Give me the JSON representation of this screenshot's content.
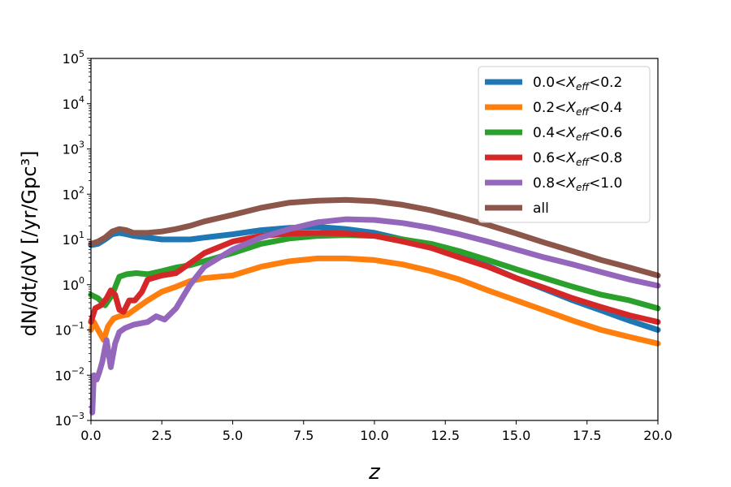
{
  "chart_data": {
    "type": "line",
    "xlabel": "z",
    "ylabel": "dN/dt/dV [/yr/Gpc³]",
    "xlim": [
      0,
      20
    ],
    "ylim": [
      0.001,
      100000
    ],
    "yscale": "log",
    "grid": false,
    "legend_position": "top-right",
    "x_ticks": [
      "0.0",
      "2.5",
      "5.0",
      "7.5",
      "10.0",
      "12.5",
      "15.0",
      "17.5",
      "20.0"
    ],
    "y_ticks": [
      {
        "base": "10",
        "exp": "−3"
      },
      {
        "base": "10",
        "exp": "−2"
      },
      {
        "base": "10",
        "exp": "−1"
      },
      {
        "base": "10",
        "exp": "0"
      },
      {
        "base": "10",
        "exp": "1"
      },
      {
        "base": "10",
        "exp": "2"
      },
      {
        "base": "10",
        "exp": "3"
      },
      {
        "base": "10",
        "exp": "4"
      },
      {
        "base": "10",
        "exp": "5"
      }
    ],
    "series": [
      {
        "name": "0.0<X_eff<0.2",
        "label_pre": "0.0<",
        "label_var": "X",
        "label_sub": "eff",
        "label_post": "<0.2",
        "color": "#1f77b4",
        "x": [
          0,
          0.25,
          0.5,
          0.75,
          1.0,
          1.25,
          1.5,
          2.0,
          2.5,
          3.0,
          3.5,
          4.0,
          5.0,
          6.0,
          7.0,
          8.0,
          9.0,
          10.0,
          11.0,
          12.0,
          13.0,
          14.0,
          15.0,
          16.0,
          17.0,
          18.0,
          19.0,
          20.0
        ],
        "y": [
          7.5,
          8,
          10,
          13,
          14,
          13,
          12,
          11,
          10,
          10,
          10,
          11,
          13,
          16,
          18,
          19,
          17,
          14,
          10,
          7,
          4.5,
          2.6,
          1.4,
          0.8,
          0.45,
          0.27,
          0.16,
          0.1
        ]
      },
      {
        "name": "0.2<X_eff<0.4",
        "label_pre": "0.2<",
        "label_var": "X",
        "label_sub": "eff",
        "label_post": "<0.4",
        "color": "#ff7f0e",
        "x": [
          0,
          0.1,
          0.25,
          0.45,
          0.6,
          0.8,
          1.0,
          1.3,
          1.6,
          2.0,
          2.5,
          3.0,
          3.5,
          4.0,
          5.0,
          6.0,
          7.0,
          8.0,
          9.0,
          10.0,
          11.0,
          12.0,
          13.0,
          14.0,
          15.0,
          16.0,
          17.0,
          18.0,
          19.0,
          20.0
        ],
        "y": [
          0.1,
          0.15,
          0.1,
          0.06,
          0.12,
          0.18,
          0.2,
          0.22,
          0.3,
          0.45,
          0.7,
          0.9,
          1.2,
          1.4,
          1.6,
          2.5,
          3.3,
          3.8,
          3.8,
          3.5,
          2.8,
          2.0,
          1.3,
          0.75,
          0.45,
          0.27,
          0.16,
          0.1,
          0.07,
          0.05
        ]
      },
      {
        "name": "0.4<X_eff<0.6",
        "label_pre": "0.4<",
        "label_var": "X",
        "label_sub": "eff",
        "label_post": "<0.6",
        "color": "#2ca02c",
        "x": [
          0,
          0.25,
          0.5,
          0.75,
          1.0,
          1.25,
          1.6,
          2.0,
          2.5,
          3.0,
          3.5,
          4.0,
          5.0,
          6.0,
          7.0,
          8.0,
          9.0,
          10.0,
          11.0,
          12.0,
          13.0,
          14.0,
          15.0,
          16.0,
          17.0,
          18.0,
          19.0,
          20.0
        ],
        "y": [
          0.6,
          0.5,
          0.35,
          0.6,
          1.5,
          1.7,
          1.8,
          1.7,
          2.0,
          2.4,
          2.7,
          3.3,
          5.0,
          8.0,
          10.5,
          12,
          12.5,
          12,
          10,
          8,
          5.5,
          3.5,
          2.2,
          1.4,
          0.9,
          0.6,
          0.45,
          0.3
        ]
      },
      {
        "name": "0.6<X_eff<0.8",
        "label_pre": "0.6<",
        "label_var": "X",
        "label_sub": "eff",
        "label_post": "<0.8",
        "color": "#d62728",
        "x": [
          0,
          0.15,
          0.35,
          0.55,
          0.7,
          0.85,
          1.0,
          1.15,
          1.35,
          1.55,
          1.8,
          2.0,
          2.5,
          3.0,
          3.5,
          4.0,
          5.0,
          6.0,
          7.0,
          8.0,
          9.0,
          10.0,
          11.0,
          12.0,
          13.0,
          14.0,
          15.0,
          16.0,
          17.0,
          18.0,
          19.0,
          20.0
        ],
        "y": [
          0.15,
          0.3,
          0.35,
          0.5,
          0.75,
          0.6,
          0.28,
          0.25,
          0.45,
          0.45,
          0.7,
          1.3,
          1.6,
          1.8,
          3.0,
          5.0,
          9.0,
          12,
          13.5,
          14,
          13.5,
          12,
          9,
          6.5,
          4,
          2.5,
          1.4,
          0.85,
          0.5,
          0.32,
          0.21,
          0.15
        ]
      },
      {
        "name": "0.8<X_eff<1.0",
        "label_pre": "0.8<",
        "label_var": "X",
        "label_sub": "eff",
        "label_post": "<1.0",
        "color": "#9467bd",
        "x": [
          0.05,
          0.1,
          0.2,
          0.3,
          0.4,
          0.55,
          0.7,
          0.85,
          1.0,
          1.2,
          1.5,
          2.0,
          2.3,
          2.6,
          3.0,
          3.5,
          4.0,
          5.0,
          6.0,
          7.0,
          8.0,
          9.0,
          10.0,
          11.0,
          12.0,
          13.0,
          14.0,
          15.0,
          16.0,
          17.0,
          18.0,
          19.0,
          20.0
        ],
        "y": [
          0.0015,
          0.01,
          0.008,
          0.012,
          0.02,
          0.06,
          0.015,
          0.05,
          0.09,
          0.11,
          0.13,
          0.15,
          0.2,
          0.17,
          0.3,
          1.0,
          2.5,
          6.0,
          11,
          17,
          24,
          28,
          27,
          23,
          18,
          13,
          9,
          6,
          4,
          2.8,
          1.9,
          1.3,
          0.95
        ]
      },
      {
        "name": "all",
        "label_pre": "all",
        "label_var": "",
        "label_sub": "",
        "label_post": "",
        "color": "#8c564b",
        "x": [
          0,
          0.25,
          0.5,
          0.75,
          1.0,
          1.25,
          1.5,
          2.0,
          2.5,
          3.0,
          3.5,
          4.0,
          5.0,
          6.0,
          7.0,
          8.0,
          9.0,
          10.0,
          11.0,
          12.0,
          13.0,
          14.0,
          15.0,
          16.0,
          17.0,
          18.0,
          19.0,
          20.0
        ],
        "y": [
          8,
          9,
          11,
          15,
          17,
          16,
          14,
          14,
          15,
          17,
          20,
          25,
          35,
          50,
          65,
          72,
          75,
          70,
          58,
          44,
          31,
          21,
          13.5,
          8.5,
          5.5,
          3.5,
          2.4,
          1.6
        ]
      }
    ]
  }
}
